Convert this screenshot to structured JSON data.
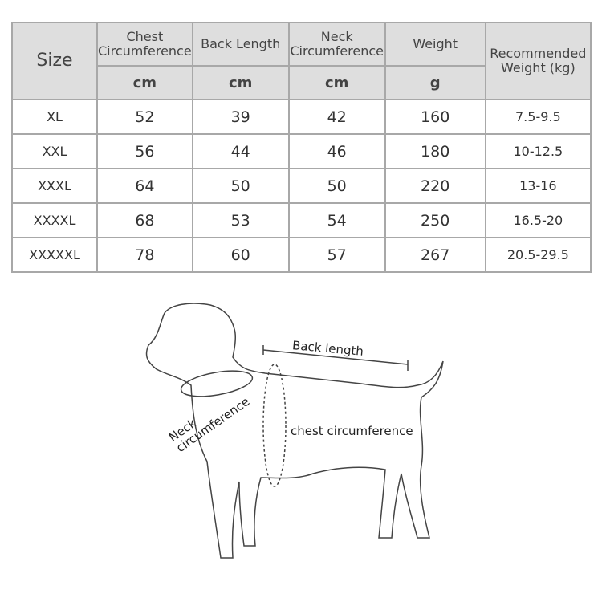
{
  "table": {
    "headers": [
      "Size",
      "Chest Circumference",
      "Back Length",
      "Neck Circumference",
      "Weight",
      "Recommended Weight (kg)"
    ],
    "units": [
      "cm",
      "cm",
      "cm",
      "g"
    ],
    "rows": [
      [
        "XL",
        "52",
        "39",
        "42",
        "160",
        "7.5-9.5"
      ],
      [
        "XXL",
        "56",
        "44",
        "46",
        "180",
        "10-12.5"
      ],
      [
        "XXXL",
        "64",
        "50",
        "50",
        "220",
        "13-16"
      ],
      [
        "XXXXL",
        "68",
        "53",
        "54",
        "250",
        "16.5-20"
      ],
      [
        "XXXXXL",
        "78",
        "60",
        "57",
        "267",
        "20.5-29.5"
      ]
    ]
  },
  "diagram": {
    "back_label": "Back length",
    "neck_label": "Neck circumference",
    "chest_label": "chest circumference"
  }
}
